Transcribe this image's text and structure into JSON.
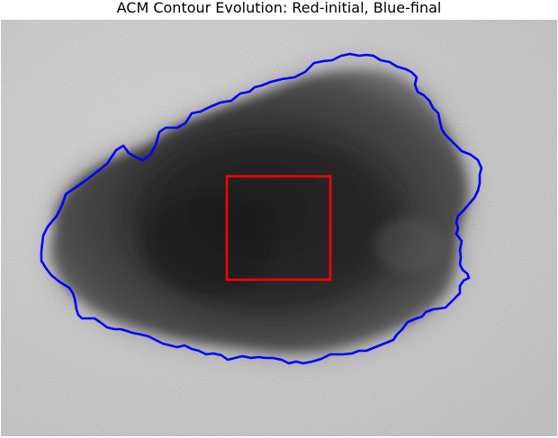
{
  "title": "ACM Contour Evolution: Red-initial, Blue-final",
  "colors": {
    "initial_contour": "#ff0000",
    "final_contour": "#0000ff",
    "skin_background": "#d9d9d9",
    "lesion_core": "#2a2a2a"
  }
}
